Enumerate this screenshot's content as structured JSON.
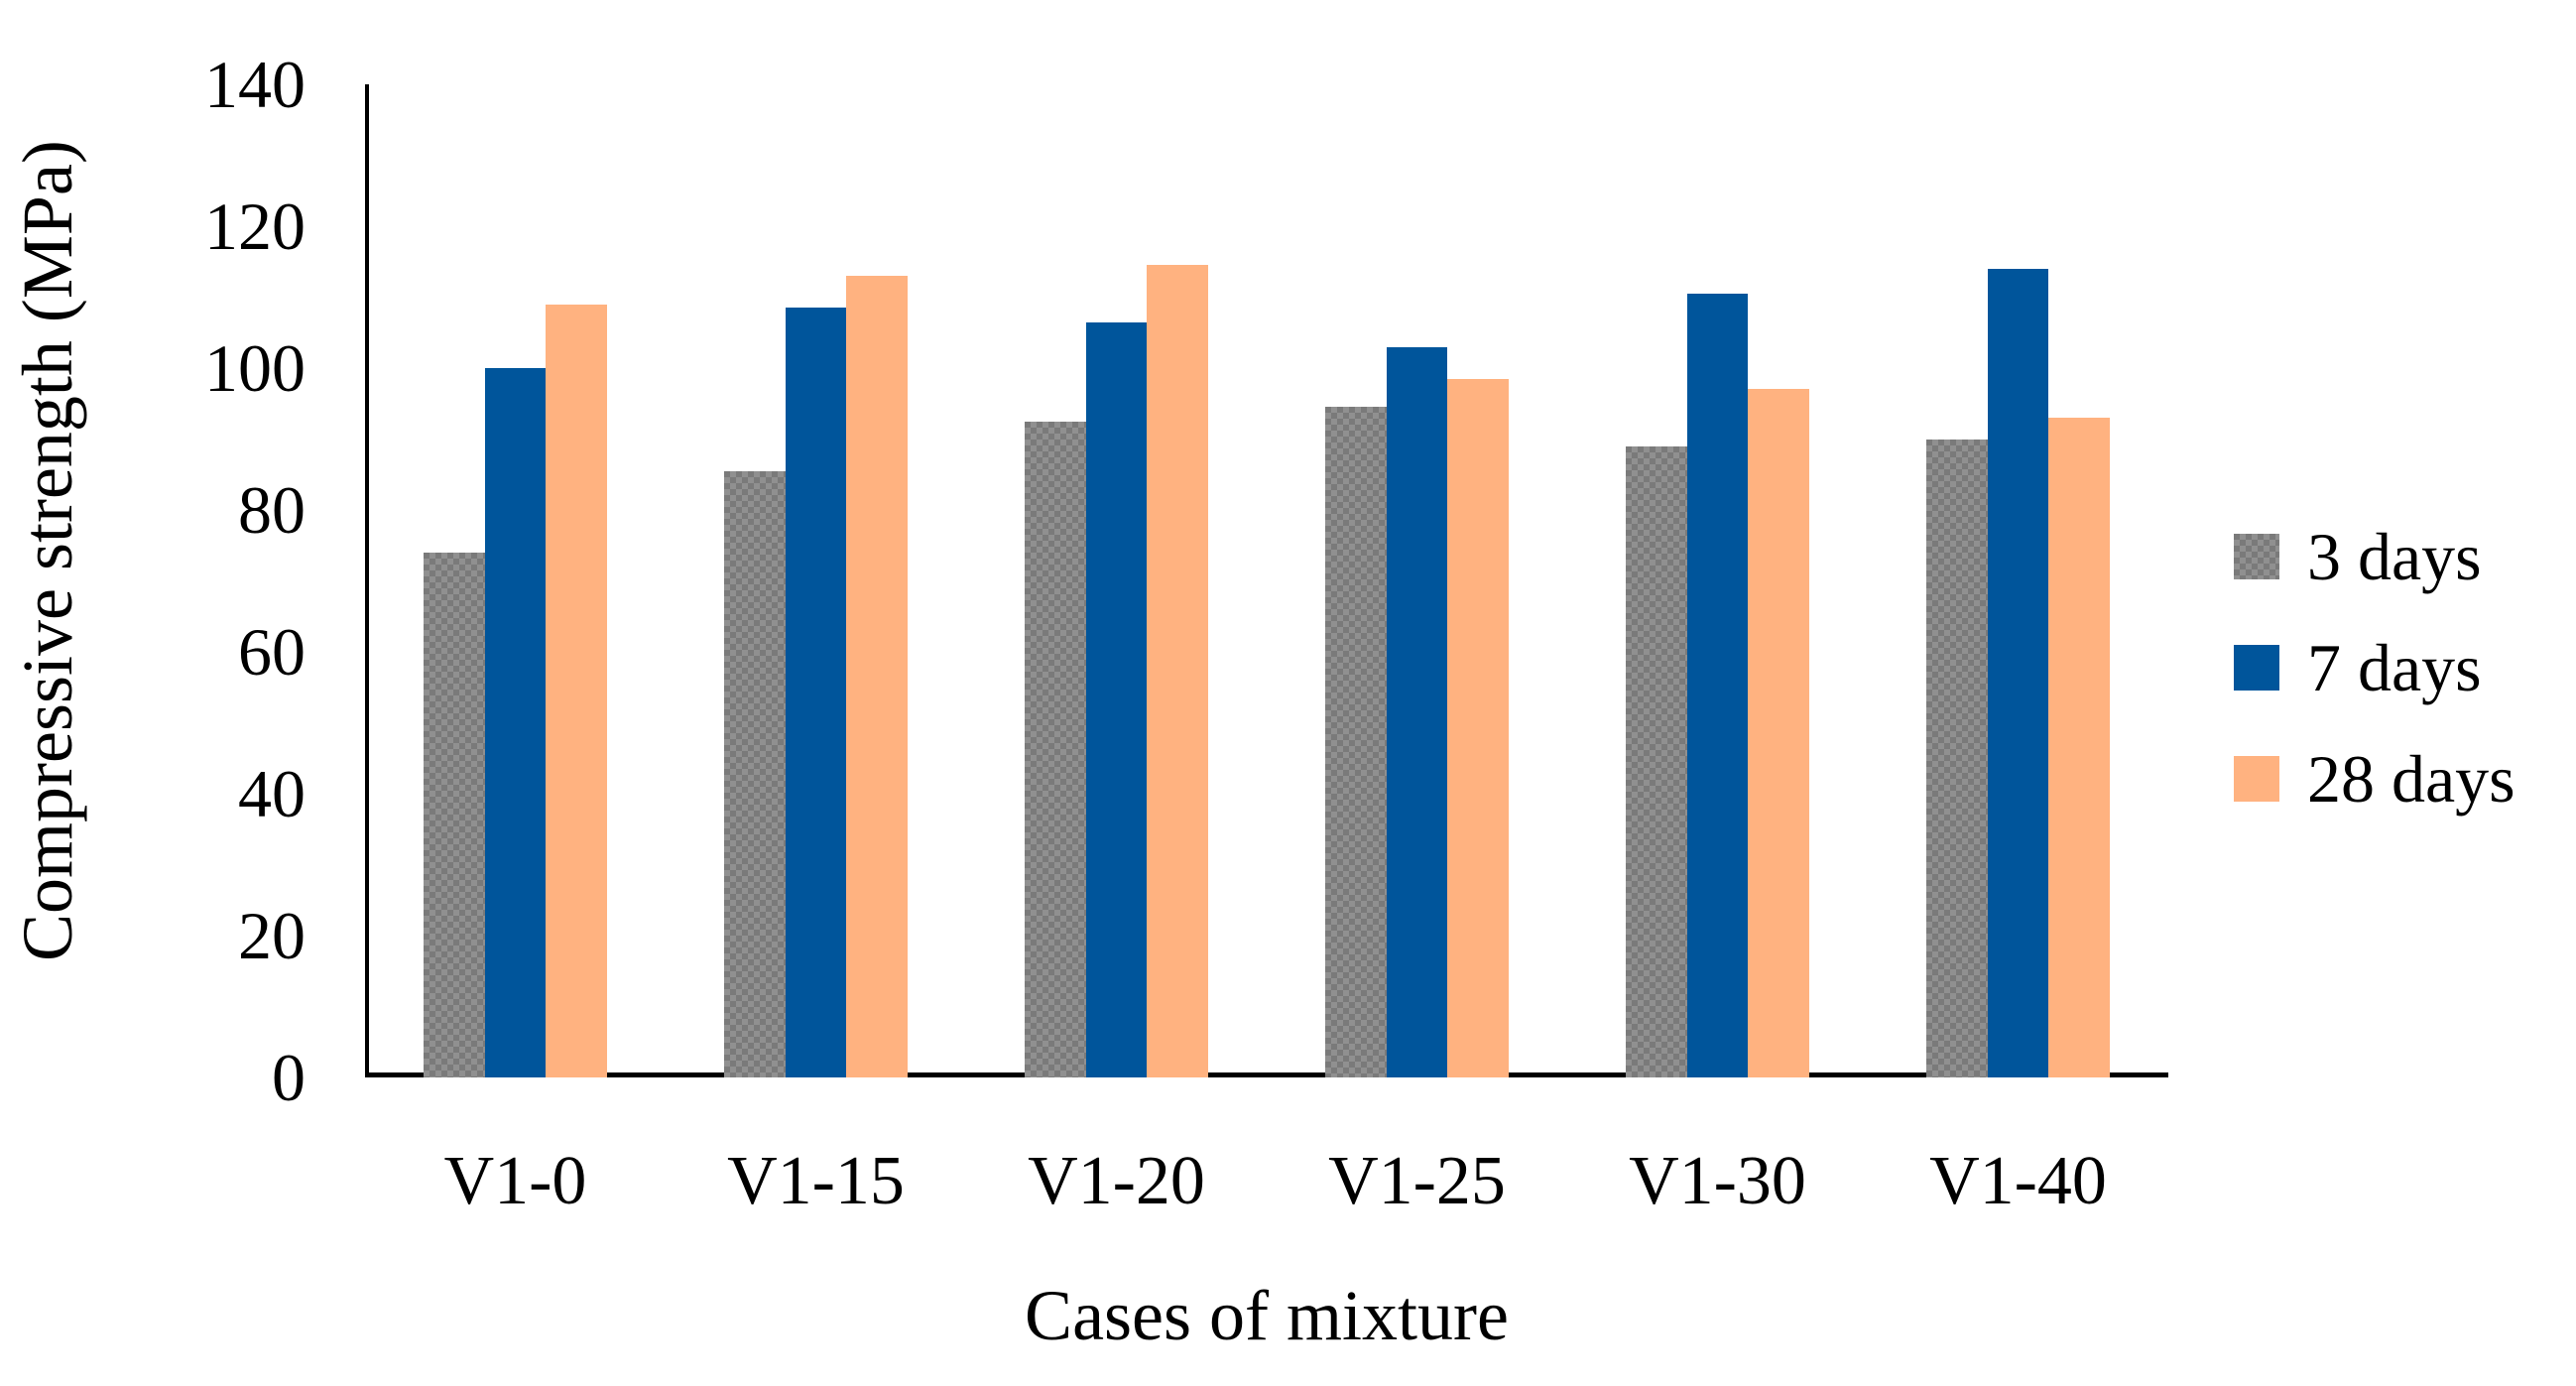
{
  "chart_data": {
    "type": "bar",
    "title": "",
    "xlabel": "Cases of mixture",
    "ylabel": "Compressive strength (MPa)",
    "categories": [
      "V1-0",
      "V1-15",
      "V1-20",
      "V1-25",
      "V1-30",
      "V1-40"
    ],
    "series": [
      {
        "name": "3 days",
        "color": "#7a7a7a",
        "pattern": "checker",
        "values": [
          74,
          85.5,
          92.5,
          94.5,
          89,
          90
        ]
      },
      {
        "name": "7 days",
        "color": "#00559b",
        "pattern": "solid",
        "values": [
          100,
          108.5,
          106.5,
          103,
          110.5,
          114
        ]
      },
      {
        "name": "28 days",
        "color": "#ffb280",
        "pattern": "solid",
        "values": [
          109,
          113,
          114.5,
          98.5,
          97,
          93
        ]
      }
    ],
    "ylim": [
      0,
      140
    ],
    "yticks": [
      0,
      20,
      40,
      60,
      80,
      100,
      120,
      140
    ],
    "grid": false,
    "legend_position": "right",
    "axis_color": "#000000",
    "text_color": "#000000"
  }
}
